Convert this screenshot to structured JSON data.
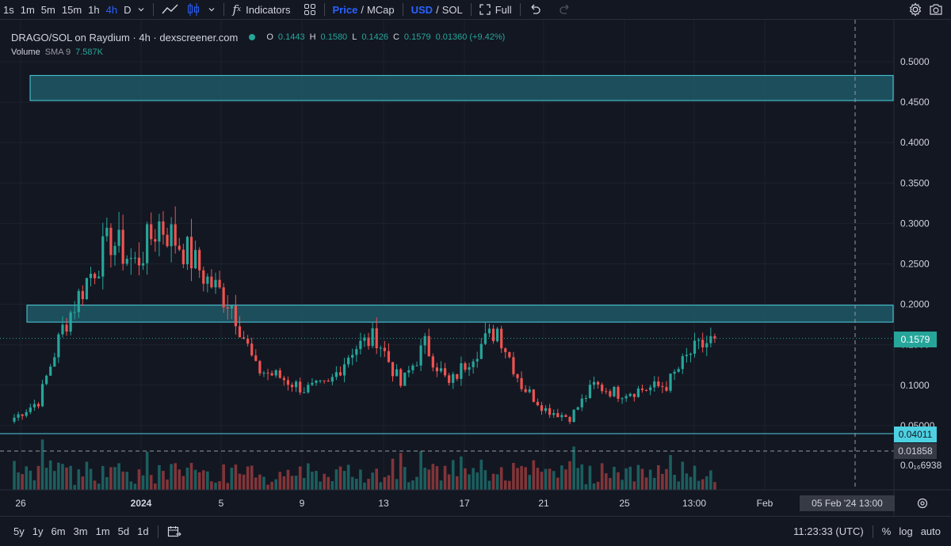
{
  "toolbar": {
    "intervals": [
      "1s",
      "1m",
      "5m",
      "15m",
      "1h",
      "4h",
      "D"
    ],
    "active_interval": "4h",
    "indicators_label": "Indicators",
    "price_label": "Price",
    "mcap_label": "MCap",
    "usd_label": "USD",
    "sol_label": "SOL",
    "full_label": "Full",
    "slash": "/"
  },
  "legend": {
    "title": "DRAGO/SOL on Raydium · 4h · dexscreener.com",
    "o_label": "O",
    "o_value": "0.1443",
    "h_label": "H",
    "h_value": "0.1580",
    "l_label": "L",
    "l_value": "0.1426",
    "c_label": "C",
    "c_value": "0.1579",
    "change": "0.01360 (+9.42%)",
    "volume_label": "Volume",
    "volume_sma": "SMA 9",
    "volume_value": "7.587K"
  },
  "price_axis": {
    "ticks": [
      "0.5000",
      "0.4500",
      "0.4000",
      "0.3500",
      "0.3000",
      "0.2500",
      "0.2000",
      "0.1500",
      "0.1000",
      "0.05000"
    ],
    "current_price": "0.1579",
    "line_price": "0.04011",
    "crosshair_price": "0.01858",
    "bottom_label": "0.0₁₆6938"
  },
  "time_axis": {
    "ticks": [
      "26",
      "2024",
      "5",
      "9",
      "13",
      "17",
      "21",
      "25",
      "13:00",
      "Feb"
    ],
    "crosshair_date": "05 Feb '24   13:00"
  },
  "bottom": {
    "ranges": [
      "5y",
      "1y",
      "6m",
      "3m",
      "1m",
      "5d",
      "1d"
    ],
    "time": "11:23:33 (UTC)",
    "percent": "%",
    "log": "log",
    "auto": "auto"
  },
  "colors": {
    "background": "#131722",
    "up": "#26a69a",
    "down": "#ef5350",
    "zone_fill": "#1f5866",
    "zone_border": "#4dd0e1",
    "accent": "#2962ff"
  },
  "chart_data": {
    "type": "candlestick",
    "title": "DRAGO/SOL on Raydium · 4h · dexscreener.com",
    "ylim": [
      0,
      0.5
    ],
    "y_ticks": [
      0.05,
      0.1,
      0.15,
      0.2,
      0.25,
      0.3,
      0.35,
      0.4,
      0.45,
      0.5
    ],
    "x_labels": [
      "26",
      "2024",
      "5",
      "9",
      "13",
      "17",
      "21",
      "25",
      "13:00",
      "Feb"
    ],
    "grid": true,
    "zones": [
      {
        "from": 0.452,
        "to": 0.483
      },
      {
        "from": 0.178,
        "to": 0.199
      }
    ],
    "horizontal_lines": [
      {
        "value": 0.04011,
        "style": "solid"
      },
      {
        "value": 0.1579,
        "style": "dotted"
      },
      {
        "value": 0.01858,
        "style": "dashed"
      }
    ],
    "last_close": 0.1579,
    "anchors": [
      {
        "date": "Dec 26",
        "price": 0.06
      },
      {
        "date": "Dec 28",
        "price": 0.08
      },
      {
        "date": "Dec 29",
        "price": 0.17
      },
      {
        "date": "Dec 30",
        "price": 0.23
      },
      {
        "date": "Dec 31",
        "price": 0.28
      },
      {
        "date": "Jan 1",
        "price": 0.25
      },
      {
        "date": "Jan 2",
        "price": 0.3
      },
      {
        "date": "Jan 3",
        "price": 0.27
      },
      {
        "date": "Jan 4",
        "price": 0.23
      },
      {
        "date": "Jan 5",
        "price": 0.2
      },
      {
        "date": "Jan 6",
        "price": 0.12
      },
      {
        "date": "Jan 7",
        "price": 0.11
      },
      {
        "date": "Jan 8",
        "price": 0.095
      },
      {
        "date": "Jan 9",
        "price": 0.1
      },
      {
        "date": "Jan 10",
        "price": 0.145
      },
      {
        "date": "Jan 11",
        "price": 0.16
      },
      {
        "date": "Jan 12",
        "price": 0.1
      },
      {
        "date": "Jan 13",
        "price": 0.15
      },
      {
        "date": "Jan 14",
        "price": 0.1
      },
      {
        "date": "Jan 15",
        "price": 0.14
      },
      {
        "date": "Jan 16",
        "price": 0.17
      },
      {
        "date": "Jan 17",
        "price": 0.1
      },
      {
        "date": "Jan 18",
        "price": 0.07
      },
      {
        "date": "Jan 19",
        "price": 0.06
      },
      {
        "date": "Jan 20",
        "price": 0.1
      },
      {
        "date": "Jan 21",
        "price": 0.09
      },
      {
        "date": "Jan 22",
        "price": 0.095
      },
      {
        "date": "Jan 23",
        "price": 0.1
      },
      {
        "date": "Jan 24",
        "price": 0.14
      },
      {
        "date": "Jan 25",
        "price": 0.158
      }
    ]
  }
}
